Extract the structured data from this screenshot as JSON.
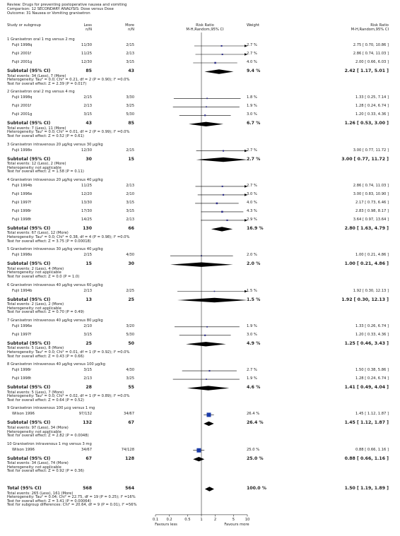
{
  "header": {
    "review": "Review:  Drugs for preventing postoperative nausea and vomiting",
    "comparison": "Comparison:  12 SECONDARY ANALYSIS: Dose versus Dose",
    "outcome": "Outcome:  31 Nausea or Vomiting granisetron"
  },
  "columns": {
    "study": "Study or subgroup",
    "less": "Less",
    "less_sub": "n/N",
    "more": "More",
    "more_sub": "n/N",
    "rr": "Risk Ratio",
    "rr_sub": "M-H,Random,95% CI",
    "weight": "Weight",
    "rr2": "Risk Ratio",
    "rr2_sub": "M-H,Random,95% CI"
  },
  "chart_data": {
    "type": "forest",
    "scale": "log",
    "xlim": [
      0.1,
      10
    ],
    "ticks": [
      "0.1",
      "0.2",
      "0.5",
      "1",
      "2",
      "5",
      "10"
    ],
    "favours_left": "Favours less",
    "favours_right": "Favours more",
    "groups": [
      {
        "title": "1 Granisetron oral 1 mg versus 2 mg",
        "studies": [
          {
            "name": "Fujii 1998q",
            "less": "11/30",
            "more": "2/15",
            "weight": "2.7 %",
            "ci": "2.75 [ 0.70, 10.86 ]",
            "rr": 2.75,
            "lo": 0.7,
            "hi": 10.86
          },
          {
            "name": "Fujii 2001f",
            "less": "11/25",
            "more": "2/13",
            "weight": "2.7 %",
            "ci": "2.86 [ 0.74, 11.03 ]",
            "rr": 2.86,
            "lo": 0.74,
            "hi": 11.03
          },
          {
            "name": "Fujii 2001g",
            "less": "12/30",
            "more": "3/15",
            "weight": "4.0 %",
            "ci": "2.00 [ 0.66, 6.03 ]",
            "rr": 2.0,
            "lo": 0.66,
            "hi": 6.03
          }
        ],
        "subtotal": {
          "label": "Subtotal (95% CI)",
          "less": "85",
          "more": "43",
          "weight": "9.4 %",
          "ci": "2.42 [ 1.17, 5.01 ]",
          "rr": 2.42,
          "lo": 1.17,
          "hi": 5.01
        },
        "notes": [
          "Total events: 34 (Less), 7 (More)",
          "Heterogeneity: Tau² = 0.0; Chi² = 0.21, df = 2 (P = 0.90); I² =0.0%",
          "Test for overall effect: Z = 2.39 (P = 0.017)"
        ]
      },
      {
        "title": "2 Granisetron oral 2 mg versus 4 mg",
        "studies": [
          {
            "name": "Fujii 1998q",
            "less": "2/15",
            "more": "3/30",
            "weight": "1.8 %",
            "ci": "1.33 [ 0.25, 7.14 ]",
            "rr": 1.33,
            "lo": 0.25,
            "hi": 7.14
          },
          {
            "name": "Fujii 2001f",
            "less": "2/13",
            "more": "3/25",
            "weight": "1.9 %",
            "ci": "1.28 [ 0.24, 6.74 ]",
            "rr": 1.28,
            "lo": 0.24,
            "hi": 6.74
          },
          {
            "name": "Fujii 2001g",
            "less": "3/15",
            "more": "5/30",
            "weight": "3.0 %",
            "ci": "1.20 [ 0.33, 4.36 ]",
            "rr": 1.2,
            "lo": 0.33,
            "hi": 4.36
          }
        ],
        "subtotal": {
          "label": "Subtotal (95% CI)",
          "less": "43",
          "more": "85",
          "weight": "6.7 %",
          "ci": "1.26 [ 0.53, 3.00 ]",
          "rr": 1.26,
          "lo": 0.53,
          "hi": 3.0
        },
        "notes": [
          "Total events: 7 (Less), 11 (More)",
          "Heterogeneity: Tau² = 0.0; Chi² = 0.01, df = 2 (P = 0.99); I² =0.0%",
          "Test for overall effect: Z = 0.52 (P = 0.61)"
        ]
      },
      {
        "title": "3 Granisetron intravenous 20 µg/kg versus 30 µg/kg",
        "studies": [
          {
            "name": "Fujii 1998o",
            "less": "12/30",
            "more": "2/15",
            "weight": "2.7 %",
            "ci": "3.00 [ 0.77, 11.72 ]",
            "rr": 3.0,
            "lo": 0.77,
            "hi": 11.72
          }
        ],
        "subtotal": {
          "label": "Subtotal (95% CI)",
          "less": "30",
          "more": "15",
          "weight": "2.7 %",
          "ci": "3.00 [ 0.77, 11.72 ]",
          "rr": 3.0,
          "lo": 0.77,
          "hi": 11.72
        },
        "notes": [
          "Total events: 12 (Less), 2 (More)",
          "Heterogeneity: not applicable",
          "Test for overall effect: Z = 1.58 (P = 0.11)"
        ]
      },
      {
        "title": "4 Granisetron intravenous 20 µg/kg versus 40 µg/kg",
        "studies": [
          {
            "name": "Fujii 1994b",
            "less": "11/25",
            "more": "2/13",
            "weight": "2.7 %",
            "ci": "2.86 [ 0.74, 11.03 ]",
            "rr": 2.86,
            "lo": 0.74,
            "hi": 11.03
          },
          {
            "name": "Fujii 1996e",
            "less": "12/20",
            "more": "2/10",
            "weight": "3.0 %",
            "ci": "3.00 [ 0.83, 10.90 ]",
            "rr": 3.0,
            "lo": 0.83,
            "hi": 10.9
          },
          {
            "name": "Fujii 1997f",
            "less": "13/30",
            "more": "3/15",
            "weight": "4.0 %",
            "ci": "2.17 [ 0.73, 6.46 ]",
            "rr": 2.17,
            "lo": 0.73,
            "hi": 6.46
          },
          {
            "name": "Fujii 1998r",
            "less": "17/30",
            "more": "3/15",
            "weight": "4.3 %",
            "ci": "2.83 [ 0.98, 8.17 ]",
            "rr": 2.83,
            "lo": 0.98,
            "hi": 8.17
          },
          {
            "name": "Fujii 1998t",
            "less": "14/25",
            "more": "2/13",
            "weight": "2.9 %",
            "ci": "3.64 [ 0.97, 13.64 ]",
            "rr": 3.64,
            "lo": 0.97,
            "hi": 13.64
          }
        ],
        "subtotal": {
          "label": "Subtotal (95% CI)",
          "less": "130",
          "more": "66",
          "weight": "16.9 %",
          "ci": "2.80 [ 1.63, 4.79 ]",
          "rr": 2.8,
          "lo": 1.63,
          "hi": 4.79
        },
        "notes": [
          "Total events: 67 (Less), 12 (More)",
          "Heterogeneity: Tau² = 0.0; Chi² = 0.38, df = 4 (P = 0.98); I² =0.0%",
          "Test for overall effect: Z = 3.75 (P = 0.00018)"
        ]
      },
      {
        "title": "5 Granisetron intravenous 30 µg/kg versus 40 µg/kg",
        "studies": [
          {
            "name": "Fujii 1998o",
            "less": "2/15",
            "more": "4/30",
            "weight": "2.0 %",
            "ci": "1.00 [ 0.21, 4.86 ]",
            "rr": 1.0,
            "lo": 0.21,
            "hi": 4.86
          }
        ],
        "subtotal": {
          "label": "Subtotal (95% CI)",
          "less": "15",
          "more": "30",
          "weight": "2.0 %",
          "ci": "1.00 [ 0.21, 4.86 ]",
          "rr": 1.0,
          "lo": 0.21,
          "hi": 4.86
        },
        "notes": [
          "Total events: 2 (Less), 4 (More)",
          "Heterogeneity: not applicable",
          "Test for overall effect: Z = 0.0 (P = 1.0)"
        ]
      },
      {
        "title": "6 Granisetron intravenous 40 µg/kg versus 60 µg/kg",
        "studies": [
          {
            "name": "Fujii 1994b",
            "less": "2/13",
            "more": "2/25",
            "weight": "1.5 %",
            "ci": "1.92 [ 0.30, 12.13 ]",
            "rr": 1.92,
            "lo": 0.3,
            "hi": 12.13
          }
        ],
        "subtotal": {
          "label": "Subtotal (95% CI)",
          "less": "13",
          "more": "25",
          "weight": "1.5 %",
          "ci": "1.92 [ 0.30, 12.13 ]",
          "rr": 1.92,
          "lo": 0.3,
          "hi": 12.13
        },
        "notes": [
          "Total events: 2 (Less), 2 (More)",
          "Heterogeneity: not applicable",
          "Test for overall effect: Z = 0.70 (P = 0.49)"
        ]
      },
      {
        "title": "7 Granisetron intravenous 40 µg/kg versus 80 µg/kg",
        "studies": [
          {
            "name": "Fujii 1996e",
            "less": "2/10",
            "more": "3/20",
            "weight": "1.9 %",
            "ci": "1.33 [ 0.26, 6.74 ]",
            "rr": 1.33,
            "lo": 0.26,
            "hi": 6.74
          },
          {
            "name": "Fujii 1997f",
            "less": "3/15",
            "more": "5/30",
            "weight": "3.0 %",
            "ci": "1.20 [ 0.33, 4.36 ]",
            "rr": 1.2,
            "lo": 0.33,
            "hi": 4.36
          }
        ],
        "subtotal": {
          "label": "Subtotal (95% CI)",
          "less": "25",
          "more": "50",
          "weight": "4.9 %",
          "ci": "1.25 [ 0.46, 3.43 ]",
          "rr": 1.25,
          "lo": 0.46,
          "hi": 3.43
        },
        "notes": [
          "Total events: 5 (Less), 8 (More)",
          "Heterogeneity: Tau² = 0.0; Chi² = 0.01, df = 1 (P = 0.92); I² =0.0%",
          "Test for overall effect: Z = 0.43 (P = 0.66)"
        ]
      },
      {
        "title": "8 Granisetron intravenous 40 µg/kg versus 100 µg/kg",
        "studies": [
          {
            "name": "Fujii 1998r",
            "less": "3/15",
            "more": "4/30",
            "weight": "2.7 %",
            "ci": "1.50 [ 0.38, 5.86 ]",
            "rr": 1.5,
            "lo": 0.38,
            "hi": 5.86
          },
          {
            "name": "Fujii 1998t",
            "less": "2/13",
            "more": "3/25",
            "weight": "1.9 %",
            "ci": "1.28 [ 0.24, 6.74 ]",
            "rr": 1.28,
            "lo": 0.24,
            "hi": 6.74
          }
        ],
        "subtotal": {
          "label": "Subtotal (95% CI)",
          "less": "28",
          "more": "55",
          "weight": "4.6 %",
          "ci": "1.41 [ 0.49, 4.04 ]",
          "rr": 1.41,
          "lo": 0.49,
          "hi": 4.04
        },
        "notes": [
          "Total events: 5 (Less), 7 (More)",
          "Heterogeneity: Tau² = 0.0; Chi² = 0.02, df = 1 (P = 0.89); I² =0.0%",
          "Test for overall effect: Z = 0.64 (P = 0.52)"
        ]
      },
      {
        "title": "9 Granisetron intravenous 100 µcg versus 1 mg",
        "studies": [
          {
            "name": "Wilson 1996",
            "less": "97/132",
            "more": "34/67",
            "weight": "26.4 %",
            "ci": "1.45 [ 1.12, 1.87 ]",
            "rr": 1.45,
            "lo": 1.12,
            "hi": 1.87
          }
        ],
        "subtotal": {
          "label": "Subtotal (95% CI)",
          "less": "132",
          "more": "67",
          "weight": "26.4 %",
          "ci": "1.45 [ 1.12, 1.87 ]",
          "rr": 1.45,
          "lo": 1.12,
          "hi": 1.87
        },
        "notes": [
          "Total events: 97 (Less), 34 (More)",
          "Heterogeneity: not applicable",
          "Test for overall effect: Z = 2.82 (P = 0.0048)"
        ]
      },
      {
        "title": "10 Granisetron intravenous 1 mg versus 3 mg",
        "studies": [
          {
            "name": "Wilson 1996",
            "less": "34/67",
            "more": "74/128",
            "weight": "25.0 %",
            "ci": "0.88 [ 0.66, 1.16 ]",
            "rr": 0.88,
            "lo": 0.66,
            "hi": 1.16
          }
        ],
        "subtotal": {
          "label": "Subtotal (95% CI)",
          "less": "67",
          "more": "128",
          "weight": "25.0 %",
          "ci": "0.88 [ 0.66, 1.16 ]",
          "rr": 0.88,
          "lo": 0.66,
          "hi": 1.16
        },
        "notes": [
          "Total events: 34 (Less), 74 (More)",
          "Heterogeneity: not applicable",
          "Test for overall effect: Z = 0.92 (P = 0.36)"
        ]
      }
    ],
    "total": {
      "label": "Total (95% CI)",
      "less": "568",
      "more": "564",
      "weight": "100.0 %",
      "ci": "1.50 [ 1.19, 1.89 ]",
      "rr": 1.5,
      "lo": 1.19,
      "hi": 1.89,
      "notes": [
        "Total events: 265 (Less), 161 (More)",
        "Heterogeneity: Tau² = 0.04; Chi² = 22.75, df = 19 (P = 0.25); I² =16%",
        "Test for overall effect: Z = 3.41 (P = 0.00064)",
        "Test for subgroup differences: Chi² = 20.64, df = 9 (P = 0.01), I² =56%"
      ]
    }
  }
}
